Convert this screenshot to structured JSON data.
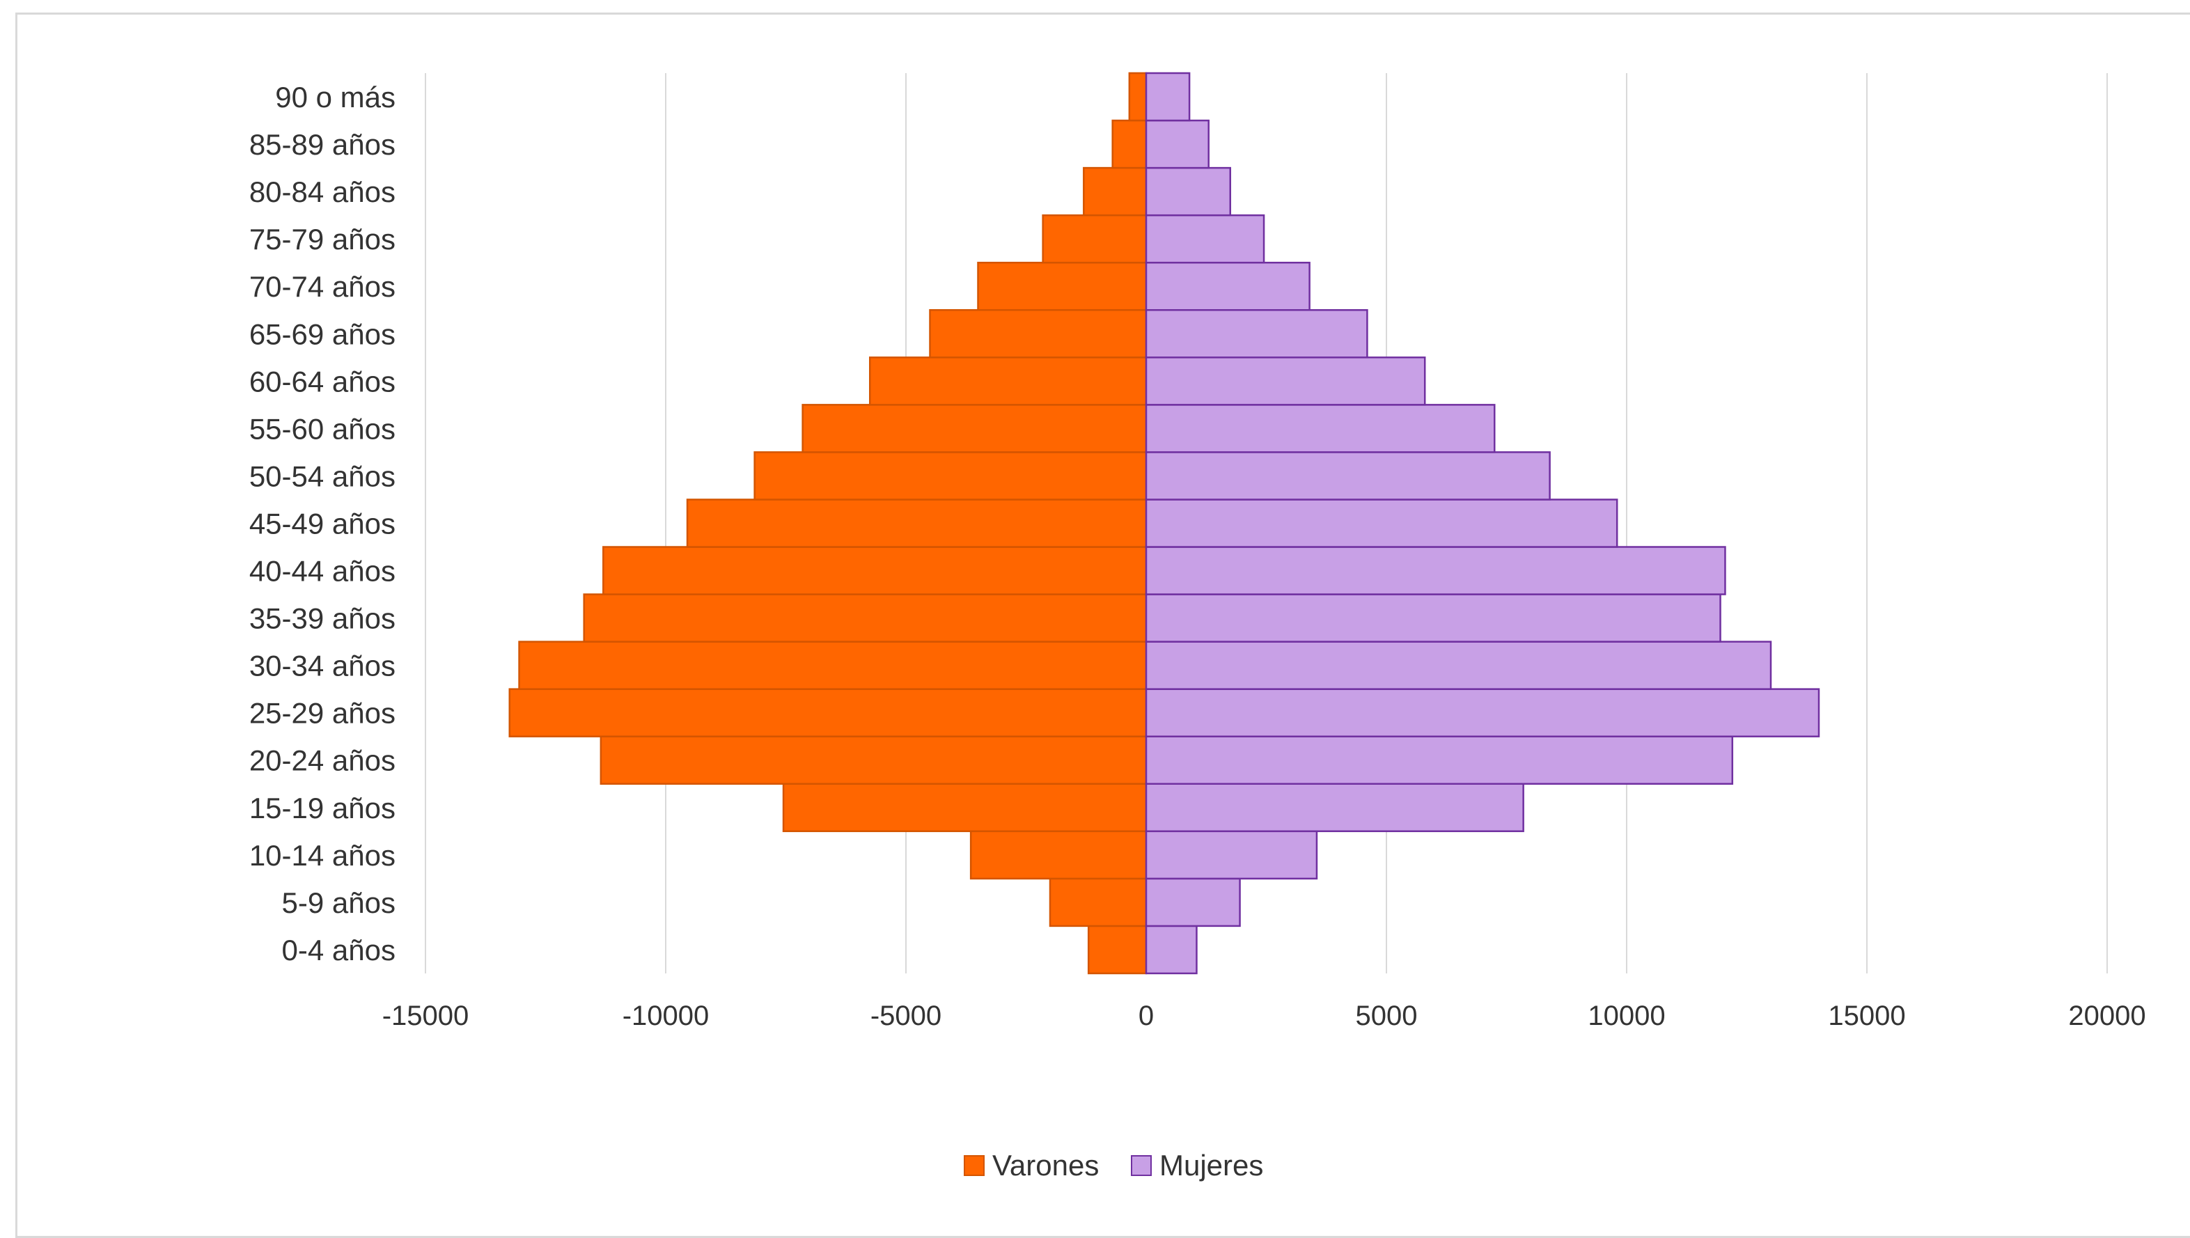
{
  "chart_data": {
    "type": "bar",
    "orientation": "horizontal",
    "categories": [
      "0-4 años",
      "5-9 años",
      "10-14 años",
      "15-19 años",
      "20-24 años",
      "25-29 años",
      "30-34 años",
      "35-39 años",
      "40-44 años",
      "45-49 años",
      "50-54 años",
      "55-60 años",
      "60-64 años",
      "65-69 años",
      "70-74 años",
      "75-79 años",
      "80-84 años",
      "85-89 años",
      "90 o más"
    ],
    "series": [
      {
        "name": "Varones",
        "color": "#ff6600",
        "stroke": "#d45500",
        "values": [
          -1200,
          -2000,
          -3650,
          -7550,
          -11350,
          -13250,
          -13050,
          -11700,
          -11300,
          -9550,
          -8150,
          -7150,
          -5750,
          -4500,
          -3500,
          -2150,
          -1300,
          -700,
          -350
        ]
      },
      {
        "name": "Mujeres",
        "color": "#c8a0e6",
        "stroke": "#7030a0",
        "values": [
          1050,
          1950,
          3550,
          7850,
          12200,
          14000,
          13000,
          11950,
          12050,
          9800,
          8400,
          7250,
          5800,
          4600,
          3400,
          2450,
          1750,
          1300,
          900
        ]
      }
    ],
    "xlim": [
      -15000,
      20000
    ],
    "xticks": [
      -15000,
      -10000,
      -5000,
      0,
      5000,
      10000,
      15000,
      20000
    ],
    "xtick_labels": [
      "-15000",
      "-10000",
      "-5000",
      "0",
      "5000",
      "10000",
      "15000",
      "20000"
    ],
    "grid": "vertical",
    "legend": "bottom-center"
  }
}
